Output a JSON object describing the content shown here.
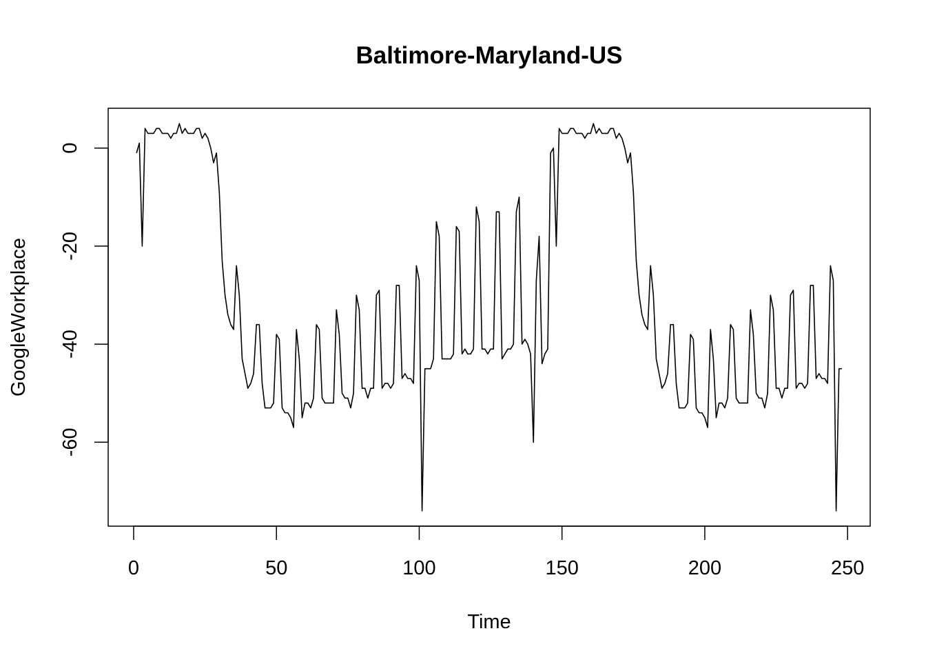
{
  "chart_data": {
    "type": "line",
    "title": "Baltimore-Maryland-US",
    "xlabel": "Time",
    "ylabel": "GoogleWorkplace",
    "xlim": [
      -8.92,
      257.92
    ],
    "ylim": [
      -77.12,
      8.12
    ],
    "xticks": [
      0,
      50,
      100,
      150,
      200,
      250
    ],
    "yticks": [
      0,
      -20,
      -40,
      -60
    ],
    "xtick_labels": [
      "0",
      "50",
      "100",
      "150",
      "200",
      "250"
    ],
    "ytick_labels": [
      "0",
      "-20",
      "-40",
      "-60"
    ],
    "grid": false,
    "legend": "none",
    "line_color": "#000000",
    "series": [
      {
        "x_start": 1,
        "values": [
          -1,
          1,
          -20,
          4,
          3,
          3,
          3,
          4,
          4,
          3,
          3,
          3,
          2,
          3,
          3,
          5,
          3,
          4,
          3,
          3,
          3,
          4,
          4,
          2,
          3,
          2,
          0,
          -3,
          -1,
          -9,
          -23,
          -30,
          -34,
          -36,
          -37,
          -24,
          -30,
          -43,
          -46,
          -49,
          -48,
          -46,
          -36,
          -36,
          -48,
          -53,
          -53,
          -53,
          -52,
          -38,
          -39,
          -53,
          -54,
          -54,
          -55,
          -57,
          -37,
          -43,
          -55,
          -52,
          -52,
          -53,
          -51,
          -36,
          -37,
          -51,
          -52,
          -52,
          -52,
          -52,
          -33,
          -38,
          -50,
          -51,
          -51,
          -53,
          -50,
          -30,
          -33,
          -49,
          -49,
          -51,
          -49,
          -49,
          -30,
          -29,
          -49,
          -48,
          -48,
          -49,
          -48,
          -28,
          -28,
          -47,
          -46,
          -47,
          -47,
          -48,
          -24,
          -27,
          -74,
          -45,
          -45,
          -45,
          -43,
          -15,
          -18,
          -43,
          -43,
          -43,
          -43,
          -42,
          -16,
          -17,
          -42,
          -41,
          -42,
          -42,
          -41,
          -12,
          -15,
          -41,
          -41,
          -42,
          -41,
          -41,
          -13,
          -13,
          -43,
          -42,
          -41,
          -41,
          -40,
          -13,
          -10,
          -40,
          -39,
          -40,
          -42,
          -60,
          -27,
          -18,
          -44,
          -42,
          -41,
          -1,
          0,
          -20,
          4,
          3,
          3,
          3,
          4,
          4,
          3,
          3,
          3,
          2,
          3,
          3,
          5,
          3,
          4,
          3,
          3,
          3,
          4,
          4,
          2,
          3,
          2,
          0,
          -3,
          -1,
          -9,
          -23,
          -30,
          -34,
          -36,
          -37,
          -24,
          -30,
          -43,
          -46,
          -49,
          -48,
          -46,
          -36,
          -36,
          -48,
          -53,
          -53,
          -53,
          -52,
          -38,
          -39,
          -53,
          -54,
          -54,
          -55,
          -57,
          -37,
          -43,
          -55,
          -52,
          -52,
          -53,
          -51,
          -36,
          -37,
          -51,
          -52,
          -52,
          -52,
          -52,
          -33,
          -38,
          -50,
          -51,
          -51,
          -53,
          -50,
          -30,
          -33,
          -49,
          -49,
          -51,
          -49,
          -49,
          -30,
          -29,
          -49,
          -48,
          -48,
          -49,
          -48,
          -28,
          -28,
          -47,
          -46,
          -47,
          -47,
          -48,
          -24,
          -27,
          -74,
          -45,
          -45
        ]
      }
    ]
  }
}
